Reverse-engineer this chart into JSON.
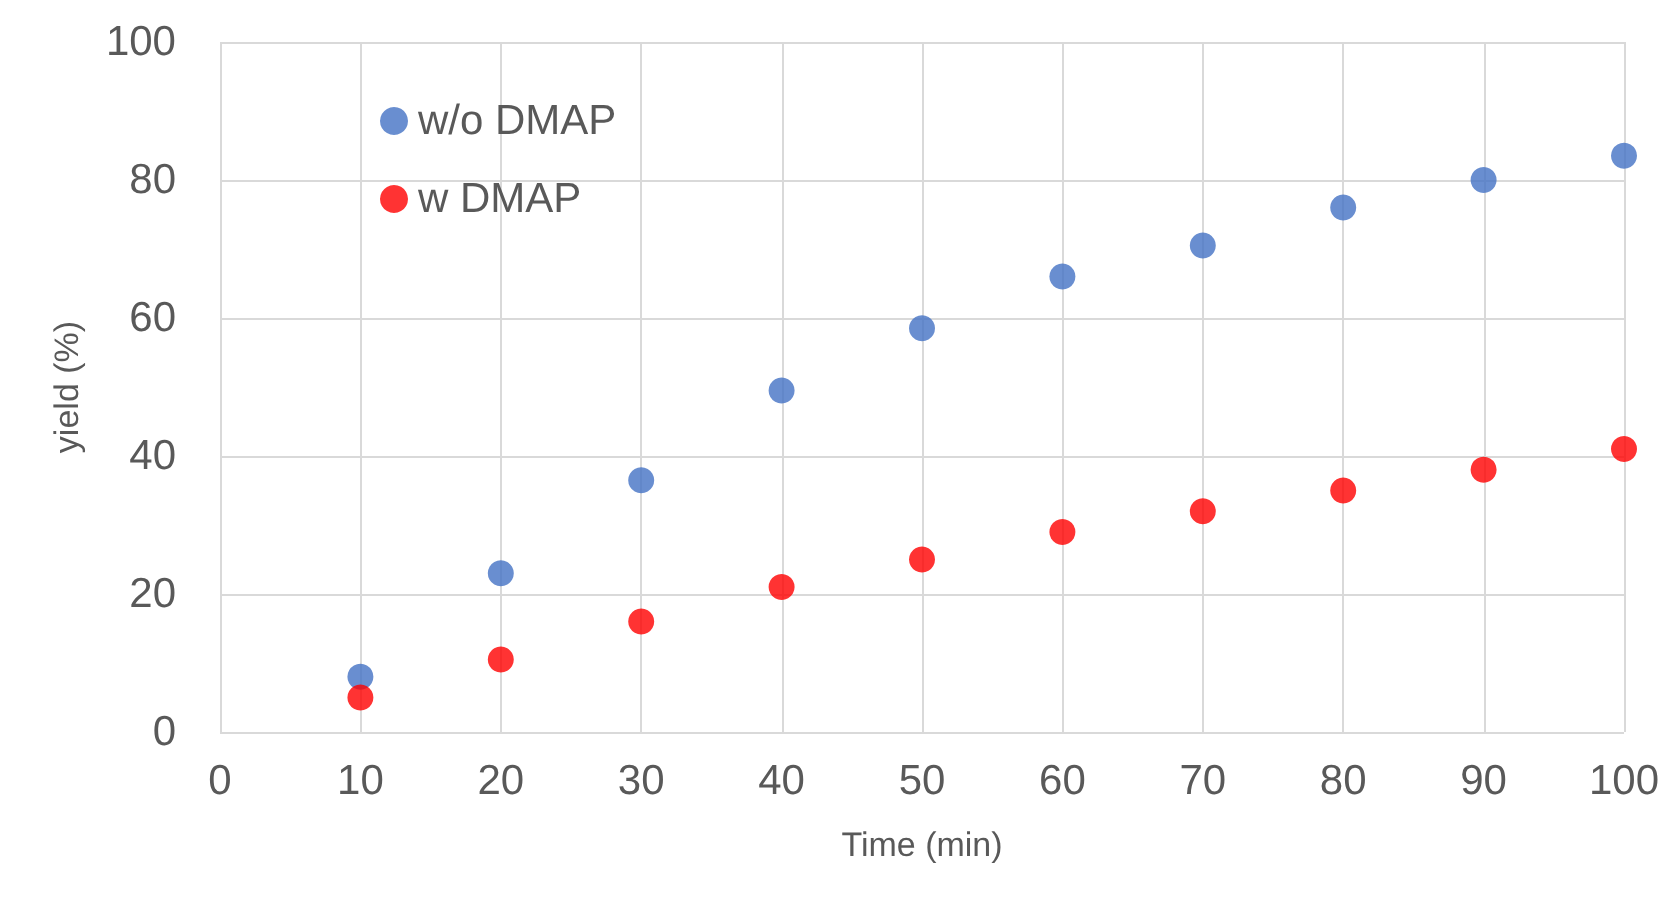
{
  "chart_data": {
    "type": "scatter",
    "xlabel": "Time (min)",
    "ylabel": "yield (%)",
    "x": [
      10,
      20,
      30,
      40,
      50,
      60,
      70,
      80,
      90,
      100
    ],
    "series": [
      {
        "name": "w/o DMAP",
        "color": "#4472c4",
        "values": [
          8,
          23,
          36.5,
          49.5,
          58.5,
          66,
          70.5,
          76,
          80,
          83.5
        ]
      },
      {
        "name": "w DMAP",
        "color": "#ff0000",
        "values": [
          5,
          10.5,
          16,
          21,
          25,
          29,
          32,
          35,
          38,
          41
        ]
      }
    ],
    "xlim": [
      0,
      100
    ],
    "xticks": [
      0,
      10,
      20,
      30,
      40,
      50,
      60,
      70,
      80,
      90,
      100
    ],
    "ylim": [
      0,
      100
    ],
    "yticks": [
      0,
      20,
      40,
      60,
      80,
      100
    ],
    "grid": true,
    "legend": "top left",
    "marker": "circle"
  }
}
